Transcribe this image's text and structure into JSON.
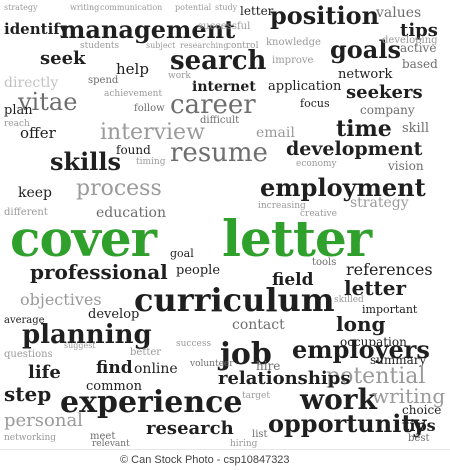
{
  "words": {
    "strategy": "strategy",
    "writing": "writing",
    "communication": "communication",
    "potential": "potential",
    "study": "study",
    "letter_top": "letter",
    "position": "position",
    "values": "values",
    "successful": "successful",
    "tips_top": "tips",
    "identify": "identify",
    "management": "management",
    "students": "students",
    "subject": "subject",
    "researching": "researching",
    "control": "control",
    "knowledge": "knowledge",
    "goals": "goals",
    "developing": "developing",
    "active": "active",
    "seek": "seek",
    "help": "help",
    "search": "search",
    "improve": "improve",
    "network": "network",
    "based": "based",
    "directly": "directly",
    "spend": "spend",
    "work_small": "work",
    "internet": "internet",
    "application": "application",
    "seekers": "seekers",
    "vitae": "vitae",
    "career": "career",
    "follow": "follow",
    "focus": "focus",
    "company": "company",
    "plan": "plan",
    "achievement": "achievement",
    "offer": "offer",
    "interview": "interview",
    "difficult": "difficult",
    "email": "email",
    "time": "time",
    "skill": "skill",
    "reach": "reach",
    "skills": "skills",
    "resume": "resume",
    "development": "development",
    "found": "found",
    "economy": "economy",
    "vision": "vision",
    "timing": "timing",
    "process": "process",
    "keep": "keep",
    "employment": "employment",
    "strategy_mid": "strategy",
    "education": "education",
    "different": "different",
    "increasing": "increasing",
    "creative": "creative",
    "cover": "cover",
    "letter": "letter",
    "professional": "professional",
    "tools": "tools",
    "references": "references",
    "field": "field",
    "people": "people",
    "curriculum": "curriculum",
    "goal": "goal",
    "objectives": "objectives",
    "important": "important",
    "planning": "planning",
    "contact": "contact",
    "skilled": "skilled",
    "job": "job",
    "employers": "employers",
    "develop": "develop",
    "occupation": "occupation",
    "long": "long",
    "summary": "summary",
    "success": "success",
    "find": "find",
    "online": "online",
    "hire": "hire",
    "potential_big": "potential",
    "relationships": "relationships",
    "life": "life",
    "common": "common",
    "step": "step",
    "experience": "experience",
    "work": "work",
    "writing_big": "writing",
    "choice": "choice",
    "personal": "personal",
    "research": "research",
    "opportunity": "opportunity",
    "tips": "tips",
    "meet": "meet",
    "relevant": "relevant",
    "list": "list",
    "networking": "networking",
    "hiring": "hiring",
    "best": "best",
    "questions": "questions",
    "average": "average",
    "suggest": "suggest",
    "better": "better",
    "volunteer": "volunteer",
    "target": "target"
  },
  "footer": {
    "credit": "© Can Stock Photo - csp10847323"
  },
  "colors": {
    "accent_green": "#2ea02b",
    "dark_text": "#1f1f1f",
    "mid_gray": "#6e6e6e",
    "light_gray": "#9a9a9a"
  }
}
